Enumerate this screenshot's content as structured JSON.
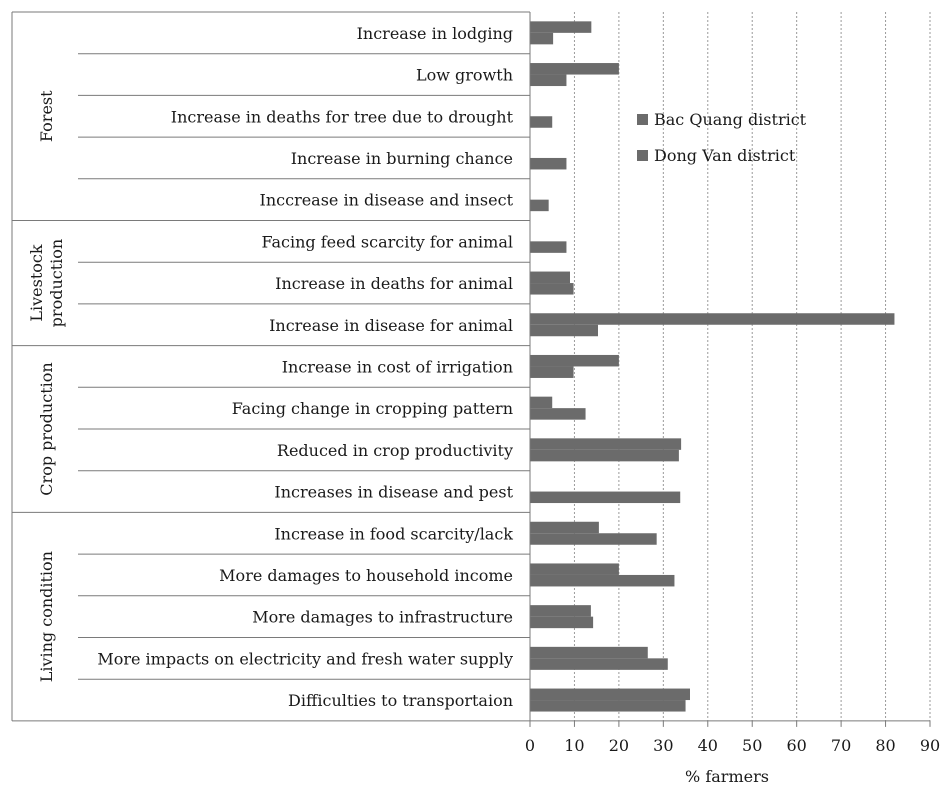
{
  "chart_data": {
    "type": "bar",
    "orientation": "horizontal",
    "groups": [
      {
        "name": "Forest",
        "categories": [
          "Increase in lodging",
          "Low growth",
          "Increase in deaths for tree due to drought",
          "Increase in burning chance",
          "Inccrease in disease and insect"
        ]
      },
      {
        "name": "Livestock production",
        "name_lines": [
          "Livestock",
          "production"
        ],
        "categories": [
          "Facing feed scarcity for animal",
          "Increase in deaths for animal",
          "Increase in disease for animal"
        ]
      },
      {
        "name": "Crop production",
        "categories": [
          "Increase in cost of irrigation",
          "Facing change in cropping pattern",
          "Reduced in crop productivity",
          "Increases in disease and pest"
        ]
      },
      {
        "name": "Living condition",
        "categories": [
          "Increase in food scarcity/lack",
          "More damages to household income",
          "More damages to infrastructure",
          "More impacts on electricity and fresh water supply",
          "Difficulties to transportaion"
        ]
      }
    ],
    "categories": [
      "Increase in lodging",
      "Low growth",
      "Increase in deaths for tree due to drought",
      "Increase in burning chance",
      "Inccrease in disease and insect",
      "Facing feed scarcity for animal",
      "Increase in deaths for animal",
      "Increase in disease for animal",
      "Increase in cost of irrigation",
      "Facing change in cropping pattern",
      "Reduced in crop productivity",
      "Increases in disease and pest",
      "Increase in food scarcity/lack",
      "More damages to household income",
      "More damages to infrastructure",
      "More impacts on electricity and fresh water supply",
      "Difficulties to transportaion"
    ],
    "series": [
      {
        "name": "Bac Quang district",
        "color": "#6b6b6b",
        "values": [
          13.8,
          20,
          0,
          0,
          0,
          0,
          9,
          82,
          20,
          5,
          34,
          0,
          15.5,
          20,
          13.7,
          26.5,
          36
        ]
      },
      {
        "name": "Dong Van district",
        "color": "#6b6b6b",
        "values": [
          5.2,
          8.2,
          5,
          8.2,
          4.2,
          8.2,
          9.8,
          15.3,
          9.8,
          12.5,
          33.5,
          33.8,
          28.5,
          32.5,
          14.2,
          31,
          35
        ]
      }
    ],
    "xlabel": "% farmers",
    "xlim": [
      0,
      90
    ],
    "xticks": [
      0,
      10,
      20,
      30,
      40,
      50,
      60,
      70,
      80,
      90
    ],
    "grid": "vertical dashed",
    "legend_position": "right, upper"
  }
}
